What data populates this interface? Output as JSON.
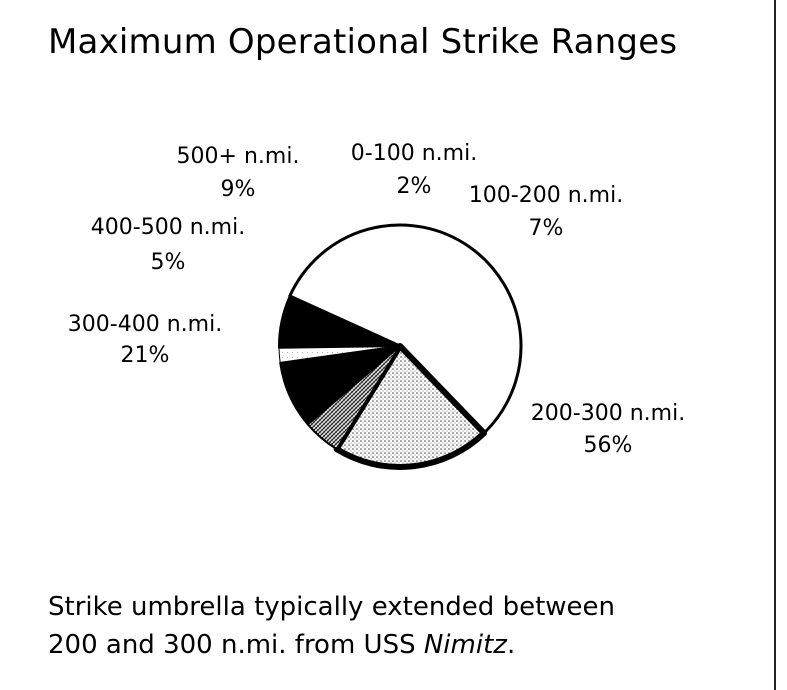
{
  "chart_data": {
    "type": "pie",
    "title": "Maximum Operational Strike Ranges",
    "slices": [
      {
        "label": "0-100 n.mi.",
        "value": 2,
        "value_label": "2%"
      },
      {
        "label": "100-200 n.mi.",
        "value": 7,
        "value_label": "7%"
      },
      {
        "label": "200-300 n.mi.",
        "value": 56,
        "value_label": "56%"
      },
      {
        "label": "300-400 n.mi.",
        "value": 21,
        "value_label": "21%"
      },
      {
        "label": "400-500 n.mi.",
        "value": 5,
        "value_label": "5%"
      },
      {
        "label": "500+ n.mi.",
        "value": 9,
        "value_label": "9%"
      }
    ]
  },
  "caption": {
    "line1": "Strike umbrella typically extended between",
    "line2_prefix": "200 and 300 n.mi. from USS ",
    "line2_italic": "Nimitz",
    "line2_suffix": "."
  }
}
